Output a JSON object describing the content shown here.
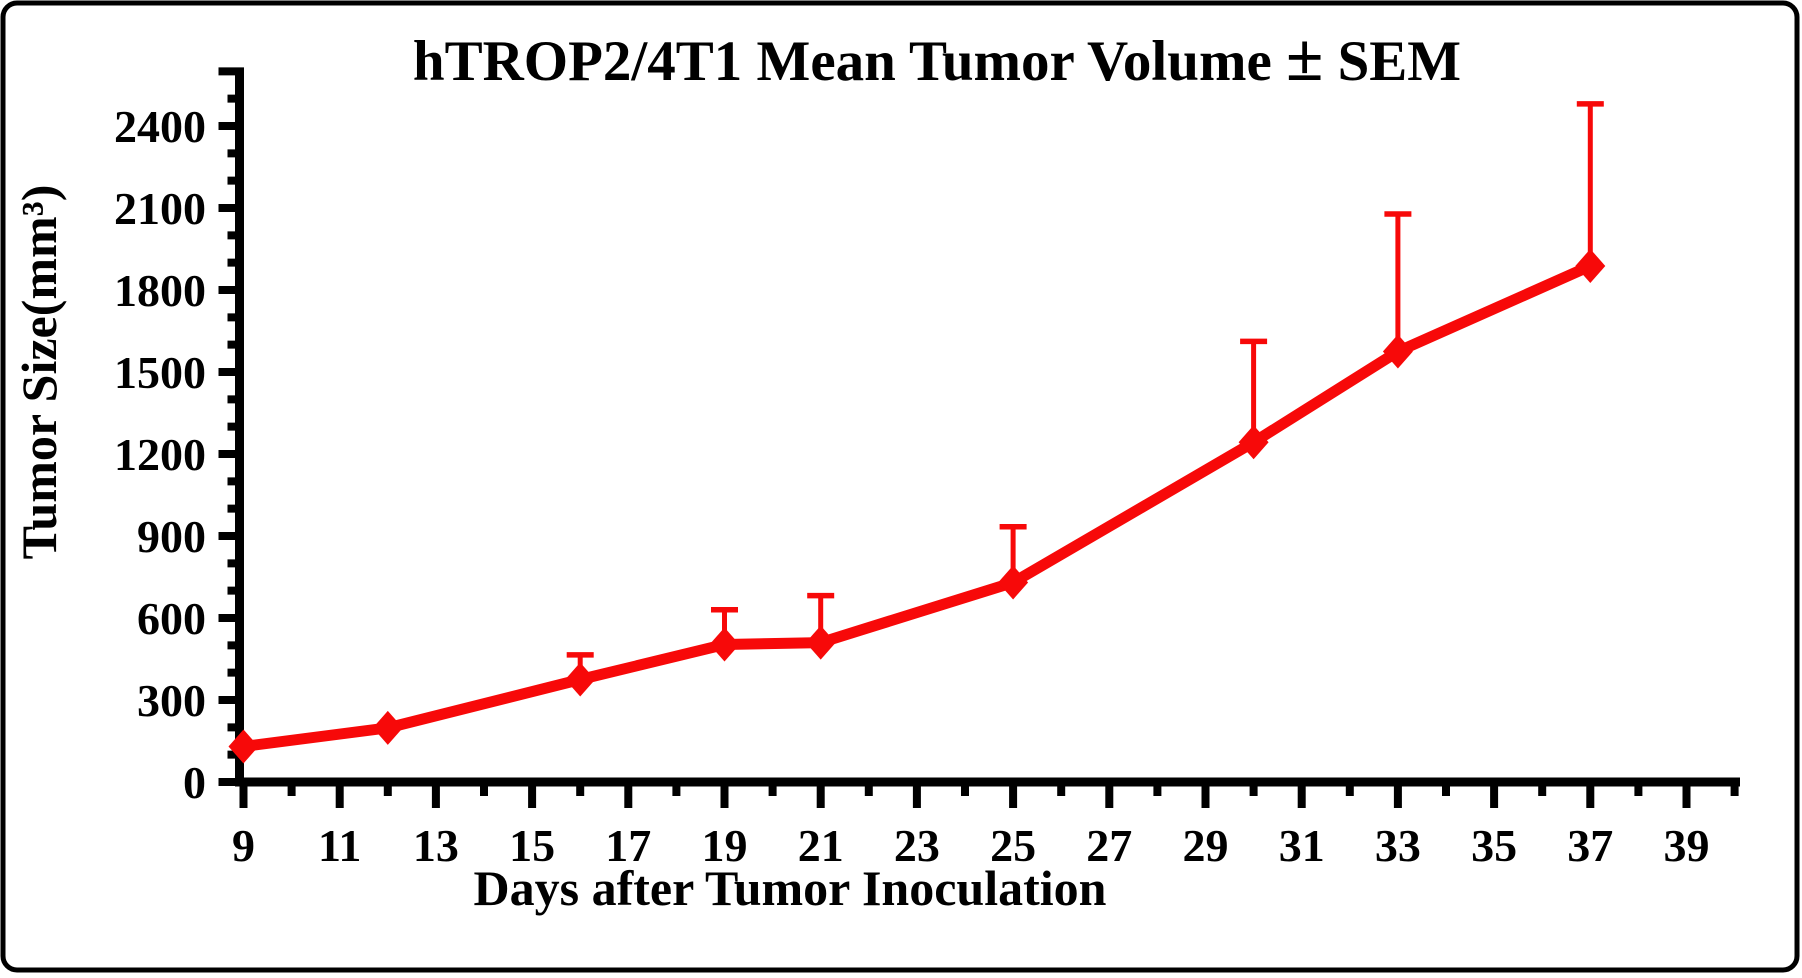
{
  "chart_data": {
    "type": "line",
    "title": "hTROP2/4T1 Mean Tumor Volume ± SEM",
    "xlabel": "Days after Tumor Inoculation",
    "ylabel": "Tumor Size(mm³)",
    "grid": false,
    "legend": "none",
    "xlim": [
      8.4,
      40.2
    ],
    "ylim": [
      0,
      2600
    ],
    "x": [
      9,
      12,
      16,
      19,
      21,
      25,
      30,
      33,
      37
    ],
    "series": [
      {
        "name": "hTROP2/4T1 mean tumor volume",
        "values": [
          130,
          198,
          375,
          503,
          510,
          730,
          1243,
          1575,
          1888
        ],
        "sem_upper": [
          null,
          null,
          90,
          127,
          172,
          204,
          369,
          503,
          593
        ],
        "marker": "diamond",
        "error_bars": "upper-only",
        "color": "#f70909"
      }
    ],
    "x_major_ticks": [
      9,
      11,
      13,
      15,
      17,
      19,
      21,
      23,
      25,
      27,
      29,
      31,
      33,
      35,
      37,
      39
    ],
    "x_minor_ticks": [
      10,
      12,
      14,
      16,
      18,
      20,
      22,
      24,
      26,
      28,
      30,
      32,
      34,
      36,
      38,
      40
    ],
    "y_major_ticks": [
      0,
      300,
      600,
      900,
      1200,
      1500,
      1800,
      2100,
      2400
    ],
    "y_minor_ticks": [
      100,
      200,
      400,
      500,
      700,
      800,
      1000,
      1100,
      1300,
      1400,
      1600,
      1700,
      1900,
      2000,
      2200,
      2300,
      2500
    ],
    "y_end_tick": 2600,
    "axis_color": "#000000",
    "frame_color": "#000000",
    "background_color": "#ffffff"
  }
}
